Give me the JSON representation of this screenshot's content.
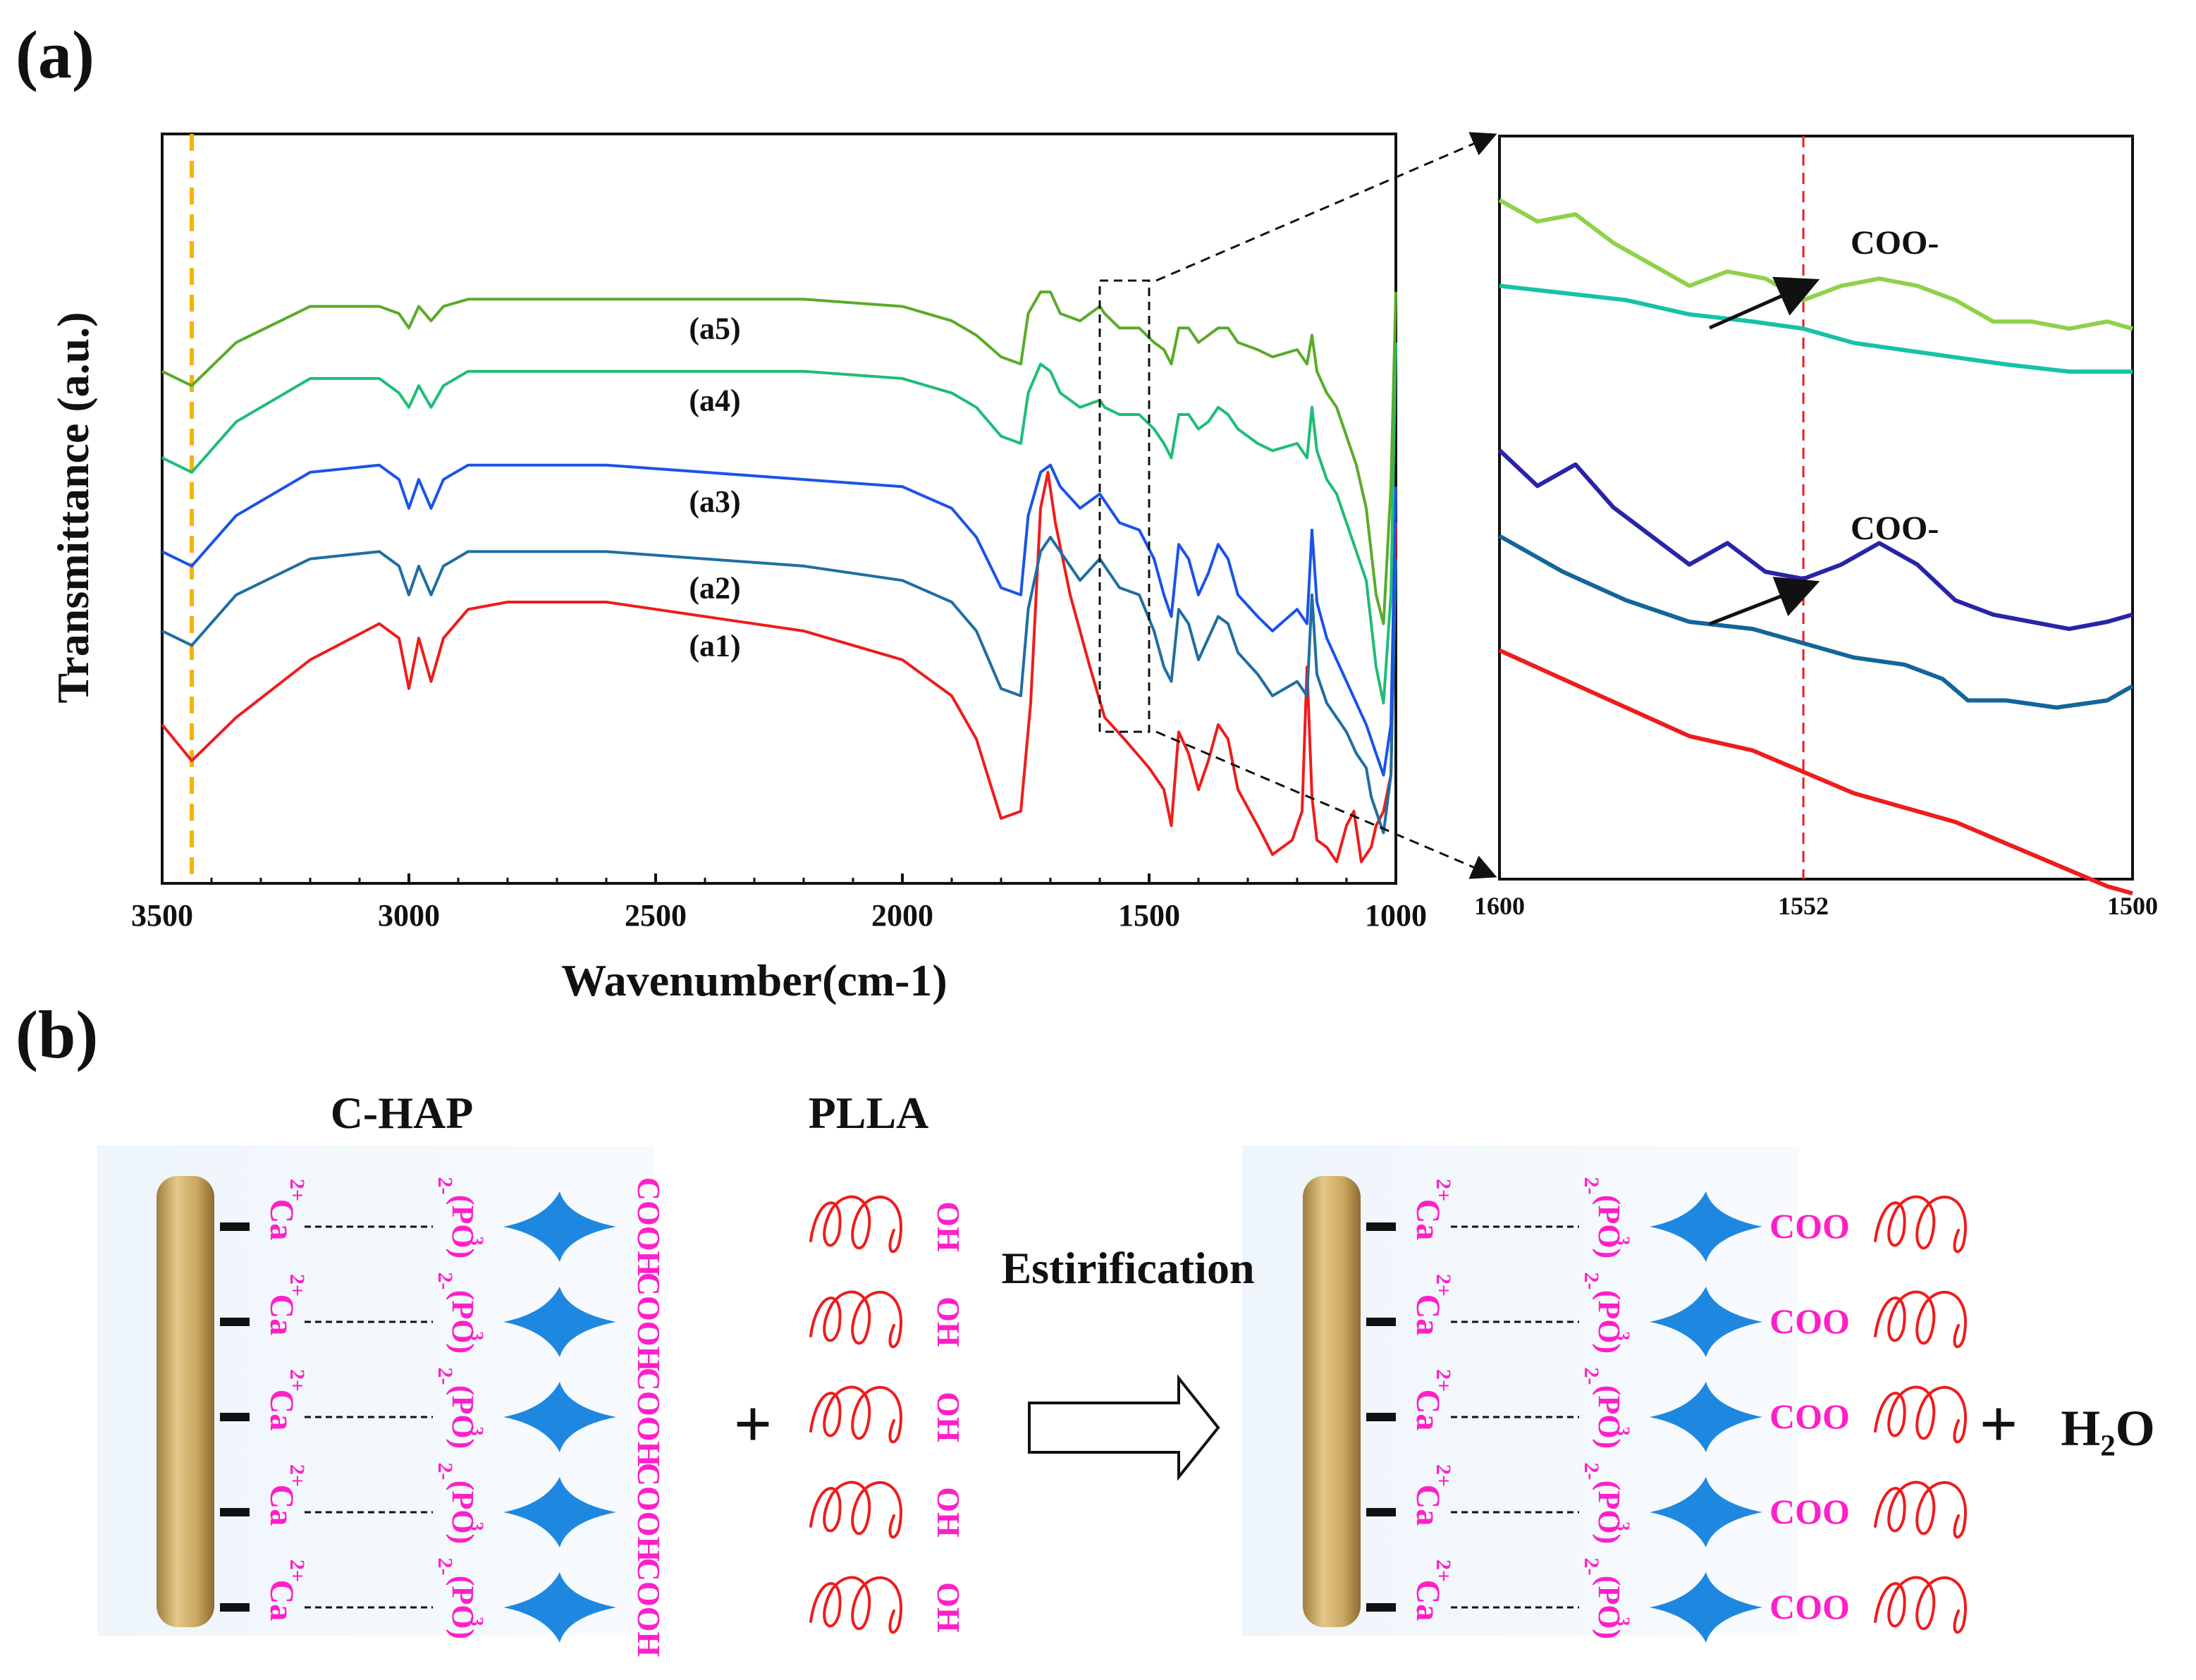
{
  "panel_a_label": "(a)",
  "panel_b_label": "(b)",
  "chart_data": [
    {
      "type": "line",
      "title": "",
      "xlabel": "Wavenumber(cm-1)",
      "ylabel": "Transmittance (a.u.)",
      "xlim": [
        3500,
        1000
      ],
      "xticks": [
        3500,
        3000,
        2500,
        2000,
        1500,
        1000
      ],
      "ylim": [
        0,
        100
      ],
      "y_ticks_shown": false,
      "reference_line": {
        "x": 3440,
        "color": "#f5b400",
        "style": "dashed"
      },
      "zoom_box": {
        "x_from": 1600,
        "x_to": 1500
      },
      "series": [
        {
          "name": "(a1)",
          "color": "#ee1c1c",
          "x": [
            3500,
            3440,
            3350,
            3200,
            3060,
            3020,
            3000,
            2980,
            2955,
            2930,
            2880,
            2800,
            2600,
            2400,
            2200,
            2000,
            1900,
            1850,
            1800,
            1760,
            1740,
            1720,
            1705,
            1690,
            1660,
            1620,
            1590,
            1550,
            1500,
            1470,
            1455,
            1440,
            1420,
            1400,
            1380,
            1360,
            1340,
            1320,
            1280,
            1250,
            1210,
            1190,
            1180,
            1170,
            1160,
            1140,
            1120,
            1100,
            1085,
            1070,
            1050,
            1040,
            1025,
            1010,
            1000
          ],
          "y": [
            22,
            17,
            23,
            31,
            36,
            34,
            27,
            34,
            28,
            34,
            38,
            39,
            39,
            37,
            35,
            31,
            26,
            20,
            9,
            10,
            25,
            52,
            57,
            50,
            40,
            30,
            23,
            20,
            16,
            13,
            8,
            21,
            18,
            13,
            17,
            22,
            20,
            13,
            8,
            4,
            6,
            10,
            30,
            12,
            6,
            5,
            3,
            8,
            10,
            3,
            5,
            8,
            10,
            15,
            50
          ]
        },
        {
          "name": "(a2)",
          "color": "#1f6ea2",
          "x": [
            3500,
            3440,
            3350,
            3200,
            3060,
            3020,
            3000,
            2980,
            2955,
            2930,
            2880,
            2800,
            2600,
            2400,
            2200,
            2000,
            1900,
            1850,
            1800,
            1760,
            1745,
            1720,
            1700,
            1680,
            1640,
            1600,
            1590,
            1560,
            1520,
            1490,
            1470,
            1455,
            1440,
            1420,
            1400,
            1380,
            1360,
            1340,
            1320,
            1280,
            1250,
            1200,
            1180,
            1170,
            1160,
            1140,
            1120,
            1100,
            1080,
            1060,
            1050,
            1040,
            1025,
            1010,
            1000
          ],
          "y": [
            35,
            33,
            40,
            45,
            46,
            44,
            40,
            44,
            40,
            44,
            46,
            46,
            46,
            45,
            44,
            42,
            39,
            35,
            27,
            26,
            38,
            46,
            48,
            46,
            42,
            45,
            44,
            41,
            40,
            35,
            30,
            28,
            38,
            36,
            31,
            34,
            37,
            36,
            32,
            29,
            26,
            28,
            26,
            40,
            29,
            25,
            23,
            21,
            18,
            16,
            12,
            10,
            7,
            15,
            45
          ]
        },
        {
          "name": "(a3)",
          "color": "#1a53e8",
          "x": [
            3500,
            3440,
            3350,
            3200,
            3060,
            3020,
            3000,
            2980,
            2955,
            2930,
            2880,
            2800,
            2600,
            2400,
            2200,
            2000,
            1900,
            1850,
            1800,
            1760,
            1745,
            1720,
            1700,
            1680,
            1640,
            1600,
            1590,
            1560,
            1520,
            1490,
            1470,
            1455,
            1440,
            1420,
            1400,
            1380,
            1360,
            1340,
            1320,
            1280,
            1250,
            1200,
            1180,
            1170,
            1160,
            1140,
            1120,
            1100,
            1080,
            1060,
            1050,
            1040,
            1025,
            1010,
            1000
          ],
          "y": [
            46,
            44,
            51,
            57,
            58,
            56,
            52,
            56,
            52,
            56,
            58,
            58,
            58,
            57,
            56,
            55,
            52,
            48,
            41,
            40,
            51,
            57,
            58,
            55,
            52,
            54,
            53,
            50,
            49,
            45,
            40,
            37,
            47,
            45,
            40,
            43,
            47,
            45,
            40,
            37,
            35,
            38,
            36,
            49,
            39,
            34,
            31,
            28,
            25,
            22,
            20,
            18,
            15,
            22,
            55
          ]
        },
        {
          "name": "(a4)",
          "color": "#1ebd77",
          "x": [
            3500,
            3440,
            3350,
            3200,
            3060,
            3020,
            3000,
            2980,
            2955,
            2930,
            2880,
            2800,
            2600,
            2400,
            2200,
            2000,
            1900,
            1850,
            1800,
            1760,
            1745,
            1720,
            1700,
            1680,
            1640,
            1600,
            1590,
            1560,
            1520,
            1490,
            1470,
            1455,
            1440,
            1420,
            1400,
            1380,
            1360,
            1340,
            1320,
            1280,
            1250,
            1200,
            1180,
            1170,
            1160,
            1140,
            1120,
            1100,
            1080,
            1060,
            1050,
            1040,
            1025,
            1010,
            1000
          ],
          "y": [
            59,
            57,
            64,
            70,
            70,
            68,
            66,
            69,
            66,
            69,
            71,
            71,
            71,
            71,
            71,
            70,
            68,
            66,
            62,
            61,
            68,
            72,
            71,
            68,
            66,
            67,
            66,
            65,
            65,
            63,
            61,
            59,
            65,
            65,
            63,
            64,
            66,
            65,
            63,
            61,
            60,
            61,
            59,
            66,
            60,
            56,
            54,
            50,
            46,
            42,
            36,
            30,
            25,
            40,
            75
          ]
        },
        {
          "name": "(a5)",
          "color": "#5aab28",
          "x": [
            3500,
            3440,
            3350,
            3200,
            3060,
            3020,
            3000,
            2980,
            2955,
            2930,
            2880,
            2800,
            2600,
            2400,
            2200,
            2000,
            1900,
            1850,
            1800,
            1760,
            1745,
            1720,
            1700,
            1680,
            1640,
            1600,
            1590,
            1560,
            1520,
            1490,
            1470,
            1455,
            1440,
            1420,
            1400,
            1380,
            1360,
            1340,
            1320,
            1280,
            1250,
            1200,
            1180,
            1170,
            1160,
            1140,
            1120,
            1100,
            1080,
            1060,
            1050,
            1040,
            1025,
            1010,
            1000
          ],
          "y": [
            71,
            69,
            75,
            80,
            80,
            79,
            77,
            80,
            78,
            80,
            81,
            81,
            81,
            81,
            81,
            80,
            78,
            76,
            73,
            72,
            79,
            82,
            82,
            79,
            78,
            80,
            79,
            77,
            77,
            75,
            74,
            72,
            77,
            77,
            75,
            76,
            77,
            77,
            75,
            74,
            73,
            74,
            72,
            76,
            71,
            68,
            66,
            62,
            58,
            52,
            46,
            40,
            36,
            55,
            82
          ]
        }
      ],
      "series_labels": [
        "(a1)",
        "(a2)",
        "(a3)",
        "(a4)",
        "(a5)"
      ]
    },
    {
      "type": "line",
      "title": "",
      "xlabel": "",
      "ylabel": "",
      "xlim": [
        1600,
        1500
      ],
      "xticks": [
        1600,
        1552,
        1500
      ],
      "reference_line": {
        "x": 1552,
        "color": "#ee1c1c",
        "style": "dashed"
      },
      "annotations": [
        {
          "text": "COO-",
          "pair": [
            "(a4)",
            "(a5)"
          ]
        },
        {
          "text": "COO-",
          "pair": [
            "(a2)",
            "(a3)"
          ]
        }
      ],
      "series": [
        {
          "name": "(a5)",
          "color": "#8fd24a",
          "x": [
            1600,
            1594,
            1588,
            1582,
            1576,
            1570,
            1564,
            1558,
            1552,
            1546,
            1540,
            1534,
            1528,
            1522,
            1516,
            1510,
            1504,
            1500
          ],
          "y": [
            95,
            92,
            93,
            89,
            86,
            83,
            85,
            84,
            81,
            83,
            84,
            83,
            81,
            78,
            78,
            77,
            78,
            77
          ]
        },
        {
          "name": "(a4)",
          "color": "#16c2a6",
          "x": [
            1600,
            1590,
            1580,
            1570,
            1560,
            1552,
            1544,
            1536,
            1528,
            1520,
            1510,
            1500
          ],
          "y": [
            83,
            82,
            81,
            79,
            78,
            77,
            75,
            74,
            73,
            72,
            71,
            71
          ]
        },
        {
          "name": "(a3)",
          "color": "#2824a8",
          "x": [
            1600,
            1594,
            1588,
            1582,
            1576,
            1570,
            1564,
            1558,
            1552,
            1546,
            1540,
            1534,
            1528,
            1522,
            1516,
            1510,
            1504,
            1500
          ],
          "y": [
            60,
            55,
            58,
            52,
            48,
            44,
            47,
            43,
            42,
            44,
            47,
            44,
            39,
            37,
            36,
            35,
            36,
            37
          ]
        },
        {
          "name": "(a2)",
          "color": "#13659a",
          "x": [
            1600,
            1590,
            1580,
            1570,
            1560,
            1552,
            1544,
            1536,
            1530,
            1526,
            1520,
            1512,
            1504,
            1500
          ],
          "y": [
            48,
            43,
            39,
            36,
            35,
            33,
            31,
            30,
            28,
            25,
            25,
            24,
            25,
            27
          ]
        },
        {
          "name": "(a1)",
          "color": "#ee1c1c",
          "x": [
            1600,
            1590,
            1580,
            1570,
            1560,
            1552,
            1544,
            1536,
            1528,
            1520,
            1512,
            1504,
            1500
          ],
          "y": [
            32,
            28,
            24,
            20,
            18,
            15,
            12,
            10,
            8,
            5,
            2,
            -1,
            -2
          ]
        }
      ]
    }
  ],
  "scheme": {
    "left_title": "C-HAP",
    "middle_title": "PLLA",
    "reaction_label": "Estirification",
    "plus": "+",
    "product": "H₂O",
    "calcium_label": "Ca",
    "calcium_charge": "2+",
    "phosphate_label": "(PO)",
    "phosphate_sub": "3",
    "phosphate_charge": "2-",
    "cooh_label": "COOH",
    "oh_label": "OH",
    "coo_label": "COO",
    "rows": 5,
    "colors": {
      "ion": "#ff1fc8",
      "star": "#1e88e0",
      "chain": "#ee1c1c",
      "rod": "#c8a65e"
    }
  }
}
